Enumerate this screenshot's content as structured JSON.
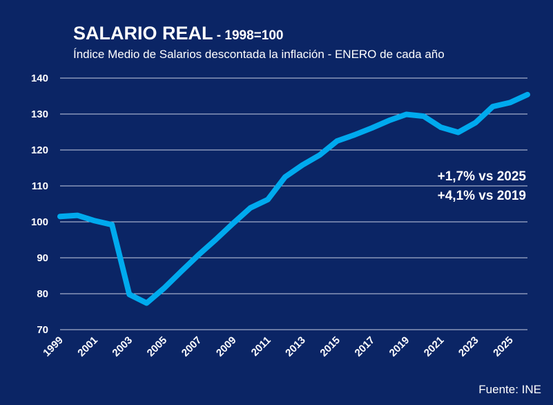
{
  "chart_data": {
    "type": "line",
    "title": "SALARIO REAL",
    "title_suffix": " - 1998=100",
    "subtitle": "Índice Medio de Salarios descontada la inflación - ENERO de cada año",
    "xlabel": "",
    "ylabel": "",
    "ylim": [
      70,
      140
    ],
    "yticks": [
      70,
      80,
      90,
      100,
      110,
      120,
      130,
      140
    ],
    "xlim": [
      1999,
      2026
    ],
    "xtick_labels": [
      "1999",
      "2001",
      "2003",
      "2005",
      "2007",
      "2009",
      "2011",
      "2013",
      "2015",
      "2017",
      "2019",
      "2021",
      "2023",
      "2025"
    ],
    "grid": true,
    "line_color": "#00aaee",
    "background": "#0b2565",
    "series": [
      {
        "x": [
          1999,
          2000,
          2001,
          2002,
          2003,
          2004,
          2005,
          2006,
          2007,
          2008,
          2009,
          2010,
          2011,
          2012,
          2013,
          2014,
          2015,
          2016,
          2017,
          2018,
          2019,
          2020,
          2021,
          2022,
          2023,
          2024,
          2025,
          2026
        ],
        "values": [
          101.5,
          101.8,
          100.3,
          99.2,
          79.8,
          77.4,
          81.5,
          86.2,
          90.8,
          95.1,
          99.6,
          103.9,
          106.2,
          112.5,
          115.8,
          118.6,
          122.5,
          124.2,
          126.1,
          128.2,
          129.9,
          129.4,
          126.3,
          124.9,
          127.6,
          132.1,
          133.2,
          135.4
        ]
      }
    ],
    "annotations": [
      "+1,7% vs 2025",
      "+4,1% vs 2019"
    ],
    "source": "Fuente: INE"
  }
}
